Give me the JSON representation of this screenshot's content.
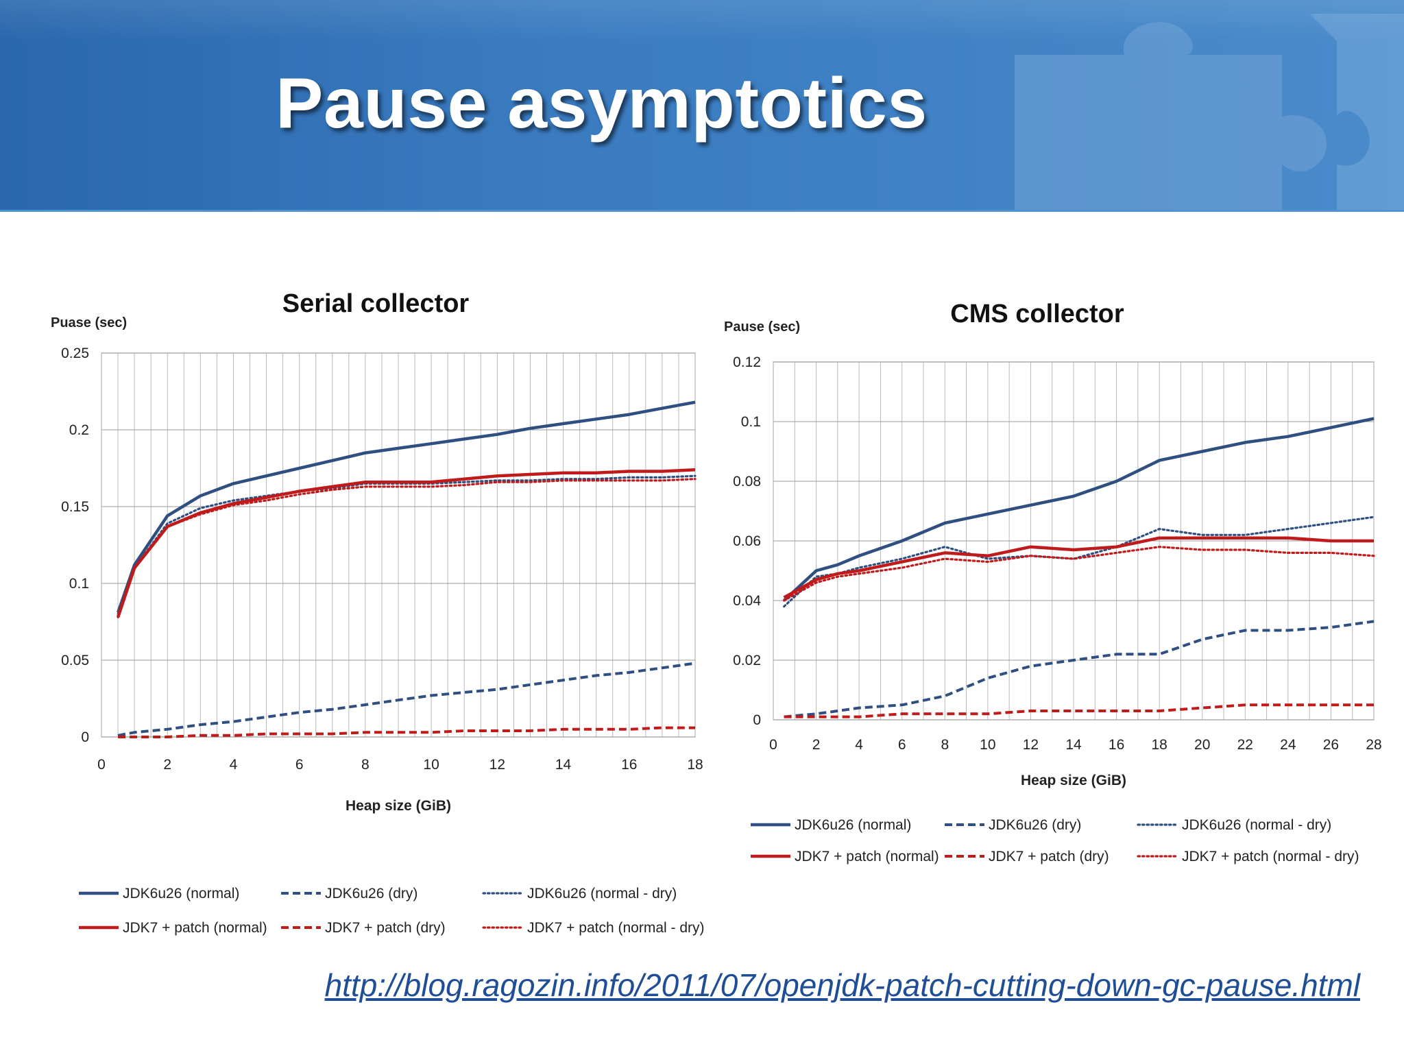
{
  "slide": {
    "title": "Pause asymptotics",
    "url": "http://blog.ragozin.info/2011/07/openjdk-patch-cutting-down-gc-pause.html"
  },
  "colors": {
    "blue": "#2f4f80",
    "red": "#c01a1a",
    "header": "#3a7abf"
  },
  "chart_data": [
    {
      "type": "line",
      "title": "Serial collector",
      "ylabel": "Puase (sec)",
      "xlabel": "Heap size (GiB)",
      "xlim": [
        0,
        18
      ],
      "ylim": [
        0,
        0.25
      ],
      "xticks": [
        "0",
        "2",
        "4",
        "6",
        "8",
        "10",
        "12",
        "14",
        "16",
        "18"
      ],
      "yticks": [
        "0",
        "0.05",
        "0.1",
        "0.15",
        "0.2",
        "0.25"
      ],
      "grid": true,
      "legend_position": "bottom",
      "x": [
        0.5,
        1,
        2,
        3,
        4,
        5,
        6,
        7,
        8,
        9,
        10,
        11,
        12,
        13,
        14,
        15,
        16,
        17,
        18
      ],
      "series": [
        {
          "name": "JDK6u26 (normal)",
          "color": "blue",
          "dash": "solid",
          "values": [
            0.081,
            0.112,
            0.144,
            0.157,
            0.165,
            0.17,
            0.175,
            0.18,
            0.185,
            0.188,
            0.191,
            0.194,
            0.197,
            0.201,
            0.204,
            0.207,
            0.21,
            0.214,
            0.218
          ]
        },
        {
          "name": "JDK6u26 (dry)",
          "color": "blue",
          "dash": "dashed",
          "values": [
            0.001,
            0.003,
            0.005,
            0.008,
            0.01,
            0.013,
            0.016,
            0.018,
            0.021,
            0.024,
            0.027,
            0.029,
            0.031,
            0.034,
            0.037,
            0.04,
            0.042,
            0.045,
            0.048
          ]
        },
        {
          "name": "JDK6u26 (normal - dry)",
          "color": "blue",
          "dash": "dotted",
          "values": [
            0.08,
            0.11,
            0.139,
            0.149,
            0.154,
            0.157,
            0.16,
            0.162,
            0.165,
            0.165,
            0.165,
            0.166,
            0.167,
            0.167,
            0.168,
            0.168,
            0.169,
            0.169,
            0.17
          ]
        },
        {
          "name": "JDK7 + patch (normal)",
          "color": "red",
          "dash": "solid",
          "values": [
            0.078,
            0.11,
            0.137,
            0.146,
            0.152,
            0.156,
            0.16,
            0.163,
            0.166,
            0.166,
            0.166,
            0.168,
            0.17,
            0.171,
            0.172,
            0.172,
            0.173,
            0.173,
            0.174
          ]
        },
        {
          "name": "JDK7 + patch (dry)",
          "color": "red",
          "dash": "dashed",
          "values": [
            0.0,
            0.0,
            0.0,
            0.001,
            0.001,
            0.002,
            0.002,
            0.002,
            0.003,
            0.003,
            0.003,
            0.004,
            0.004,
            0.004,
            0.005,
            0.005,
            0.005,
            0.006,
            0.006
          ]
        },
        {
          "name": "JDK7 + patch (normal - dry)",
          "color": "red",
          "dash": "dotted",
          "values": [
            0.078,
            0.11,
            0.137,
            0.145,
            0.151,
            0.154,
            0.158,
            0.161,
            0.163,
            0.163,
            0.163,
            0.164,
            0.166,
            0.166,
            0.167,
            0.167,
            0.167,
            0.167,
            0.168
          ]
        }
      ]
    },
    {
      "type": "line",
      "title": "CMS collector",
      "ylabel": "Pause (sec)",
      "xlabel": "Heap size (GiB)",
      "xlim": [
        0,
        28
      ],
      "ylim": [
        0,
        0.12
      ],
      "xticks": [
        "0",
        "2",
        "4",
        "6",
        "8",
        "10",
        "12",
        "14",
        "16",
        "18",
        "20",
        "22",
        "24",
        "26",
        "28"
      ],
      "yticks": [
        "0",
        "0.02",
        "0.04",
        "0.06",
        "0.08",
        "0.1",
        "0.12"
      ],
      "grid": true,
      "legend_position": "bottom",
      "x": [
        0.5,
        2,
        3,
        4,
        6,
        8,
        10,
        12,
        14,
        16,
        18,
        20,
        22,
        24,
        26,
        28
      ],
      "series": [
        {
          "name": "JDK6u26 (normal)",
          "color": "blue",
          "dash": "solid",
          "values": [
            0.04,
            0.05,
            0.052,
            0.055,
            0.06,
            0.066,
            0.069,
            0.072,
            0.075,
            0.08,
            0.087,
            0.09,
            0.093,
            0.095,
            0.098,
            0.101
          ]
        },
        {
          "name": "JDK6u26 (dry)",
          "color": "blue",
          "dash": "dashed",
          "values": [
            0.001,
            0.002,
            0.003,
            0.004,
            0.005,
            0.008,
            0.014,
            0.018,
            0.02,
            0.022,
            0.022,
            0.027,
            0.03,
            0.03,
            0.031,
            0.033
          ]
        },
        {
          "name": "JDK6u26 (normal - dry)",
          "color": "blue",
          "dash": "dotted",
          "values": [
            0.038,
            0.048,
            0.049,
            0.051,
            0.054,
            0.058,
            0.054,
            0.055,
            0.054,
            0.058,
            0.064,
            0.062,
            0.062,
            0.064,
            0.066,
            0.068
          ]
        },
        {
          "name": "JDK7 + patch (normal)",
          "color": "red",
          "dash": "solid",
          "values": [
            0.041,
            0.047,
            0.049,
            0.05,
            0.053,
            0.056,
            0.055,
            0.058,
            0.057,
            0.058,
            0.061,
            0.061,
            0.061,
            0.061,
            0.06,
            0.06
          ]
        },
        {
          "name": "JDK7 + patch (dry)",
          "color": "red",
          "dash": "dashed",
          "values": [
            0.001,
            0.001,
            0.001,
            0.001,
            0.002,
            0.002,
            0.002,
            0.003,
            0.003,
            0.003,
            0.003,
            0.004,
            0.005,
            0.005,
            0.005,
            0.005
          ]
        },
        {
          "name": "JDK7 + patch (normal - dry)",
          "color": "red",
          "dash": "dotted",
          "values": [
            0.04,
            0.046,
            0.048,
            0.049,
            0.051,
            0.054,
            0.053,
            0.055,
            0.054,
            0.056,
            0.058,
            0.057,
            0.057,
            0.056,
            0.056,
            0.055
          ]
        }
      ]
    }
  ]
}
